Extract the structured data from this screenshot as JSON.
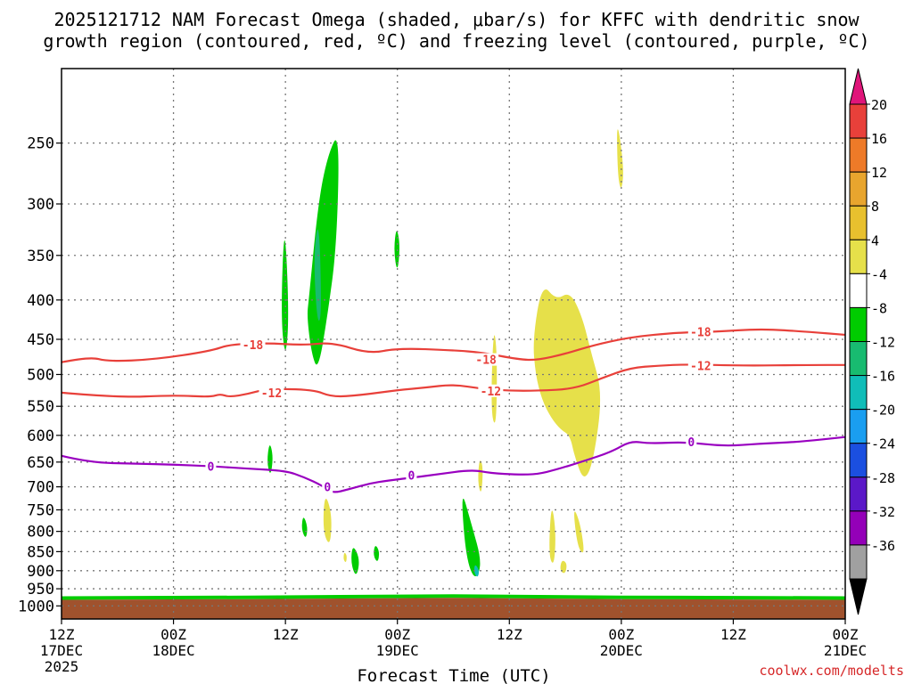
{
  "chart_data": {
    "type": "time-height",
    "title": "2025121712 NAM Forecast Omega (shaded, μbar/s) for KFFC with dendritic snow",
    "subtitle": "growth region (contoured, red, ºC) and freezing level (contoured, purple, ºC)",
    "xlabel": "Forecast Time (UTC)",
    "x_hours_range": [
      0,
      84
    ],
    "ylim_hPa": [
      1040,
      200
    ],
    "x_ticks": [
      {
        "hour": 0,
        "top": "12Z",
        "mid": "17DEC",
        "bot": "2025"
      },
      {
        "hour": 12,
        "top": "00Z",
        "mid": "18DEC",
        "bot": ""
      },
      {
        "hour": 24,
        "top": "12Z",
        "mid": "",
        "bot": ""
      },
      {
        "hour": 36,
        "top": "00Z",
        "mid": "19DEC",
        "bot": ""
      },
      {
        "hour": 48,
        "top": "12Z",
        "mid": "",
        "bot": ""
      },
      {
        "hour": 60,
        "top": "00Z",
        "mid": "20DEC",
        "bot": ""
      },
      {
        "hour": 72,
        "top": "12Z",
        "mid": "",
        "bot": ""
      },
      {
        "hour": 84,
        "top": "00Z",
        "mid": "21DEC",
        "bot": ""
      }
    ],
    "y_ticks": [
      250,
      300,
      350,
      400,
      450,
      500,
      550,
      600,
      650,
      700,
      750,
      800,
      850,
      900,
      950,
      1000
    ],
    "colorbar": {
      "labels": [
        "20",
        "16",
        "12",
        "8",
        "4",
        "-4",
        "-8",
        "-12",
        "-16",
        "-20",
        "-24",
        "-28",
        "-32",
        "-36"
      ],
      "top_arrow": "#e0157a",
      "bottom_arrow": "#000000",
      "bins": [
        "#e8403a",
        "#ee7a28",
        "#e8a52e",
        "#e8c02e",
        "#e6e04a",
        "#ffffff",
        "#00cc00",
        "#18bb70",
        "#10bdb8",
        "#1a9ef0",
        "#1b4fe0",
        "#5b18c8",
        "#9400b8",
        "#a0a0a0"
      ]
    },
    "series": [
      {
        "name": "-18",
        "color": "#e8403a",
        "points": [
          [
            0,
            482
          ],
          [
            3,
            474
          ],
          [
            5,
            481
          ],
          [
            10,
            478
          ],
          [
            16,
            466
          ],
          [
            18,
            457
          ],
          [
            22,
            455
          ],
          [
            26,
            458
          ],
          [
            29,
            454
          ],
          [
            33,
            470
          ],
          [
            36,
            462
          ],
          [
            42,
            465
          ],
          [
            45,
            468
          ],
          [
            49,
            478
          ],
          [
            51,
            479
          ],
          [
            54,
            470
          ],
          [
            57,
            458
          ],
          [
            61,
            447
          ],
          [
            66,
            441
          ],
          [
            70,
            440
          ],
          [
            75,
            436
          ],
          [
            80,
            440
          ],
          [
            84,
            444
          ]
        ]
      },
      {
        "name": "-12",
        "color": "#e8403a",
        "points": [
          [
            0,
            528
          ],
          [
            6,
            536
          ],
          [
            12,
            532
          ],
          [
            16,
            535
          ],
          [
            17,
            530
          ],
          [
            18,
            535
          ],
          [
            20,
            530
          ],
          [
            22,
            522
          ],
          [
            27,
            523
          ],
          [
            29,
            535
          ],
          [
            32,
            532
          ],
          [
            36,
            524
          ],
          [
            39,
            520
          ],
          [
            42,
            515
          ],
          [
            45,
            522
          ],
          [
            48,
            525
          ],
          [
            51,
            525
          ],
          [
            55,
            522
          ],
          [
            58,
            505
          ],
          [
            61,
            490
          ],
          [
            64,
            487
          ],
          [
            67,
            485
          ],
          [
            73,
            487
          ],
          [
            80,
            486
          ],
          [
            84,
            486
          ]
        ]
      },
      {
        "name": "0",
        "color": "#9900c0",
        "points": [
          [
            0,
            638
          ],
          [
            3,
            651
          ],
          [
            8,
            653
          ],
          [
            12,
            655
          ],
          [
            16,
            658
          ],
          [
            20,
            663
          ],
          [
            24,
            667
          ],
          [
            26,
            680
          ],
          [
            28,
            698
          ],
          [
            29,
            714
          ],
          [
            31,
            704
          ],
          [
            33,
            693
          ],
          [
            35,
            687
          ],
          [
            38,
            680
          ],
          [
            40,
            675
          ],
          [
            44,
            665
          ],
          [
            46,
            672
          ],
          [
            49,
            675
          ],
          [
            51,
            674
          ],
          [
            53,
            665
          ],
          [
            56,
            648
          ],
          [
            59,
            630
          ],
          [
            61,
            610
          ],
          [
            63,
            615
          ],
          [
            67,
            612
          ],
          [
            71,
            620
          ],
          [
            75,
            615
          ],
          [
            79,
            612
          ],
          [
            84,
            603
          ]
        ]
      }
    ],
    "contour_labels": [
      {
        "text": "-18",
        "hour": 20.5,
        "p": 457,
        "color": "#e8403a"
      },
      {
        "text": "-18",
        "hour": 45.5,
        "p": 478,
        "color": "#e8403a"
      },
      {
        "text": "-18",
        "hour": 68.5,
        "p": 440,
        "color": "#e8403a"
      },
      {
        "text": "-12",
        "hour": 22.5,
        "p": 528,
        "color": "#e8403a"
      },
      {
        "text": "-12",
        "hour": 46,
        "p": 525,
        "color": "#e8403a"
      },
      {
        "text": "-12",
        "hour": 68.5,
        "p": 487,
        "color": "#e8403a"
      },
      {
        "text": "0",
        "hour": 16,
        "p": 658,
        "color": "#9900c0"
      },
      {
        "text": "0",
        "hour": 37.5,
        "p": 676,
        "color": "#9900c0"
      },
      {
        "text": "0",
        "hour": 67.5,
        "p": 612,
        "color": "#9900c0"
      },
      {
        "text": "0",
        "hour": 28.5,
        "p": 700,
        "color": "#9900c0"
      }
    ],
    "omega_regions": [
      {
        "sign": "negative",
        "color": "#00cc00",
        "hours": [
          23.9,
          24.4,
          24.0,
          23.5
        ],
        "p": [
          310,
          420,
          480,
          420
        ]
      },
      {
        "sign": "negative",
        "color": "#00cc00",
        "hours": [
          26.5,
          27.5,
          28.5,
          29.8,
          29.5,
          28.5,
          27.5,
          26.8,
          26.3
        ],
        "p": [
          400,
          300,
          260,
          240,
          340,
          420,
          495,
          470,
          420
        ]
      },
      {
        "sign": "negative",
        "color": "#18bb70",
        "hours": [
          27.0,
          27.6,
          27.9,
          27.4
        ],
        "p": [
          350,
          310,
          420,
          430
        ]
      },
      {
        "sign": "negative",
        "color": "#00cc00",
        "hours": [
          35.9,
          36.3,
          36.0,
          35.6
        ],
        "p": [
          320,
          340,
          370,
          345
        ]
      },
      {
        "sign": "negative",
        "color": "#00cc00",
        "hours": [
          22.3,
          22.7,
          22.4,
          22.0
        ],
        "p": [
          610,
          640,
          680,
          650
        ]
      },
      {
        "sign": "negative",
        "color": "#00cc00",
        "hours": [
          25.9,
          26.4,
          26.2,
          25.7
        ],
        "p": [
          760,
          790,
          820,
          795
        ]
      },
      {
        "sign": "negative",
        "color": "#00cc00",
        "hours": [
          31.2,
          32.0,
          31.6,
          31.0
        ],
        "p": [
          830,
          870,
          920,
          880
        ]
      },
      {
        "sign": "negative",
        "color": "#00cc00",
        "hours": [
          33.6,
          34.1,
          33.9,
          33.4
        ],
        "p": [
          830,
          850,
          880,
          860
        ]
      },
      {
        "sign": "negative",
        "color": "#00cc00",
        "hours": [
          42.8,
          43.9,
          45.1,
          44.3,
          43.3
        ],
        "p": [
          700,
          780,
          880,
          930,
          860
        ]
      },
      {
        "sign": "negative",
        "color": "#10bdb8",
        "hours": [
          44.3,
          44.8,
          44.6,
          44.2
        ],
        "p": [
          880,
          900,
          920,
          905
        ]
      },
      {
        "sign": "positive",
        "color": "#e6e04a",
        "hours": [
          59.5,
          60.3,
          60.0,
          59.6
        ],
        "p": [
          230,
          270,
          290,
          275
        ]
      },
      {
        "sign": "positive",
        "color": "#e6e04a",
        "hours": [
          46.3,
          46.7,
          46.6,
          46.0
        ],
        "p": [
          430,
          470,
          590,
          560
        ]
      },
      {
        "sign": "positive",
        "color": "#e6e04a",
        "hours": [
          44.8,
          45.2,
          45.0,
          44.6
        ],
        "p": [
          640,
          660,
          720,
          690
        ]
      },
      {
        "sign": "positive",
        "color": "#e6e04a",
        "hours": [
          50.5,
          51.5,
          53.0,
          54.5,
          55.8,
          56.8,
          58.0,
          57.0,
          56.0,
          55.0,
          54.5,
          53.5,
          52.5,
          51.5,
          50.8
        ],
        "p": [
          450,
          380,
          400,
          390,
          420,
          470,
          530,
          650,
          690,
          640,
          600,
          590,
          570,
          540,
          500
        ]
      },
      {
        "sign": "positive",
        "color": "#e6e04a",
        "hours": [
          54.8,
          55.6,
          56.1,
          55.3
        ],
        "p": [
          740,
          780,
          860,
          840
        ]
      },
      {
        "sign": "positive",
        "color": "#e6e04a",
        "hours": [
          52.5,
          53.0,
          52.8,
          52.2
        ],
        "p": [
          730,
          800,
          890,
          860
        ]
      },
      {
        "sign": "positive",
        "color": "#e6e04a",
        "hours": [
          53.6,
          54.2,
          54.0,
          53.4
        ],
        "p": [
          870,
          880,
          910,
          900
        ]
      },
      {
        "sign": "positive",
        "color": "#e6e04a",
        "hours": [
          28.2,
          29.0,
          28.8,
          28.0
        ],
        "p": [
          710,
          760,
          840,
          800
        ]
      },
      {
        "sign": "positive",
        "color": "#e6e04a",
        "hours": [
          30.3,
          30.6,
          30.5,
          30.2
        ],
        "p": [
          850,
          860,
          880,
          870
        ]
      }
    ],
    "terrain_color": "#a0522d",
    "terrain_fringe_color": "#00cc00",
    "surface_pressure": [
      [
        0,
        982
      ],
      [
        20,
        980
      ],
      [
        42,
        976
      ],
      [
        60,
        980
      ],
      [
        84,
        982
      ]
    ]
  },
  "credit": "coolwx.com/modelts"
}
